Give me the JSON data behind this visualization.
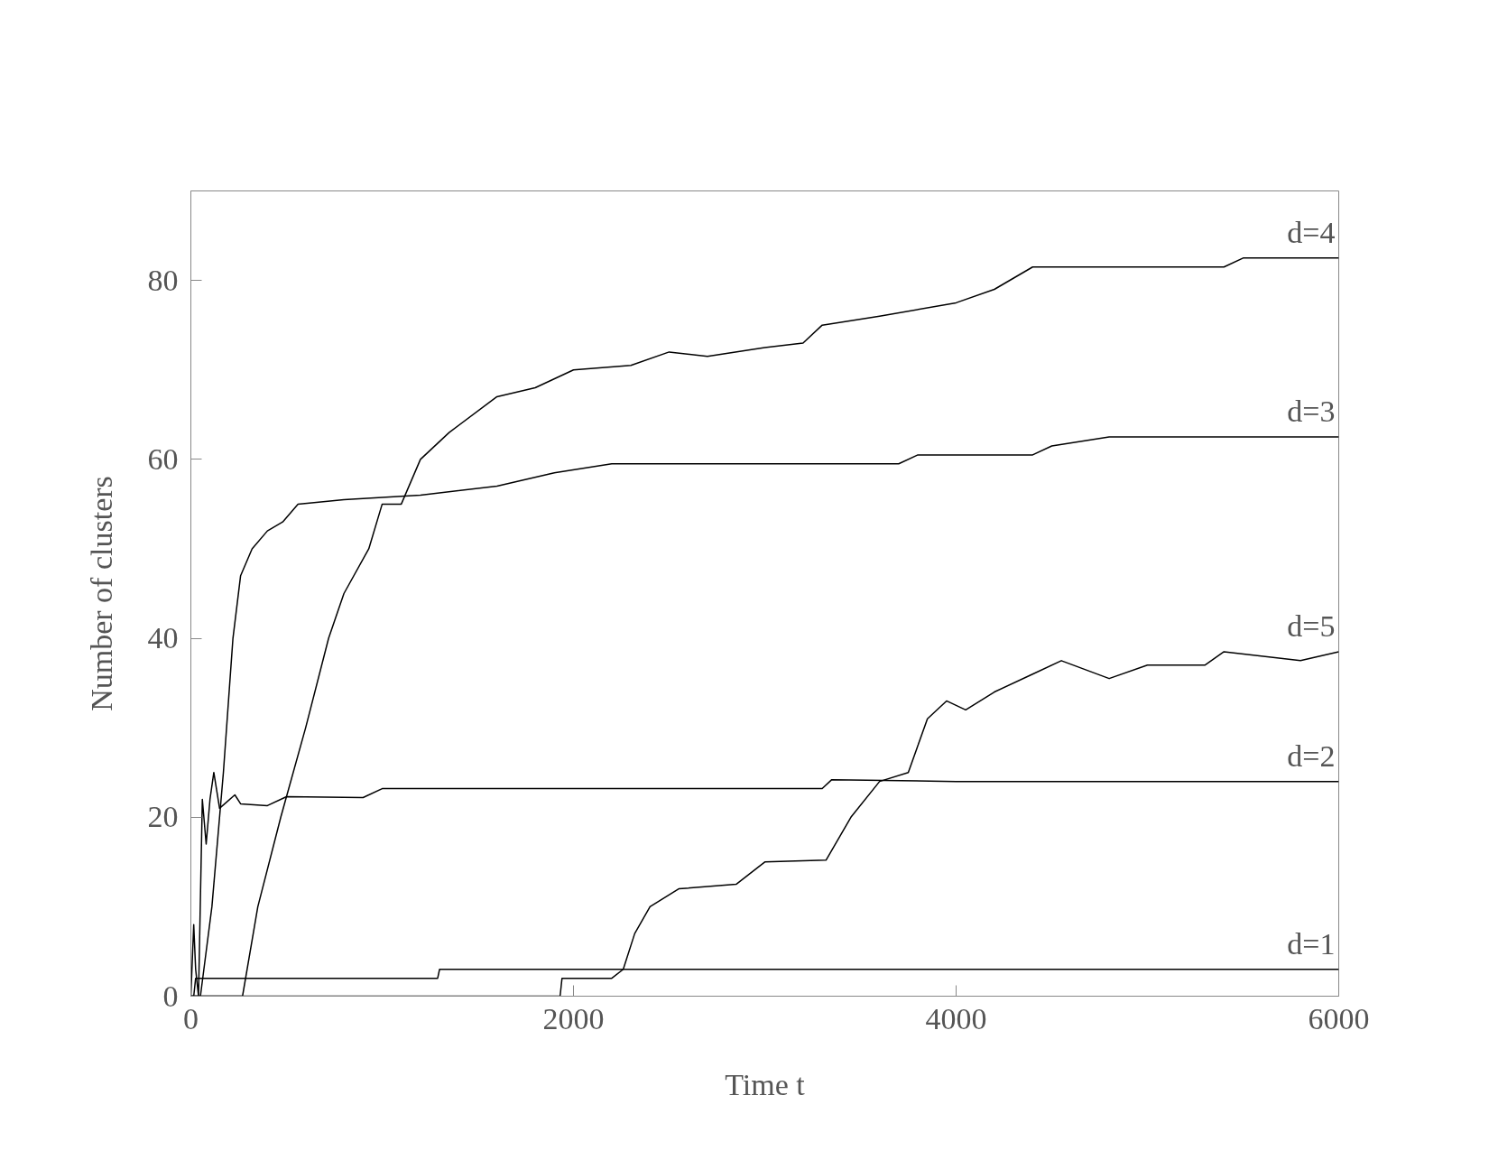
{
  "chart_data": {
    "type": "line",
    "xlabel": "Time t",
    "ylabel": "Number of clusters",
    "xlim": [
      0,
      6000
    ],
    "ylim": [
      0,
      90
    ],
    "xticks": [
      0,
      2000,
      4000,
      6000
    ],
    "yticks": [
      0,
      20,
      40,
      60,
      80
    ],
    "grid": false,
    "legend": false,
    "marker": "none",
    "line_style": "solid",
    "series": [
      {
        "name": "d=1",
        "color": "#000000",
        "x": [
          0,
          15,
          25,
          600,
          1290,
          1300,
          2000,
          3000,
          4000,
          5000,
          6000
        ],
        "values": [
          0,
          0,
          2,
          2,
          2,
          3,
          3,
          3,
          3,
          3,
          3
        ]
      },
      {
        "name": "d=2",
        "color": "#000000",
        "x": [
          0,
          15,
          25,
          40,
          60,
          80,
          100,
          120,
          150,
          230,
          260,
          400,
          500,
          900,
          1000,
          2000,
          3300,
          3350,
          4000,
          5000,
          6000
        ],
        "values": [
          0,
          8,
          3,
          0,
          22,
          17,
          22,
          25,
          21,
          22.5,
          21.5,
          21.3,
          22.3,
          22.2,
          23.2,
          23.2,
          23.2,
          24.2,
          24,
          24,
          24
        ]
      },
      {
        "name": "d=3",
        "color": "#000000",
        "x": [
          0,
          50,
          110,
          170,
          220,
          260,
          320,
          400,
          480,
          560,
          800,
          1200,
          1600,
          1900,
          2200,
          3700,
          3800,
          4400,
          4500,
          4800,
          6000
        ],
        "values": [
          0,
          0,
          10,
          25,
          40,
          47,
          50,
          52,
          53,
          55,
          55.5,
          56,
          57,
          58.5,
          59.5,
          59.5,
          60.5,
          60.5,
          61.5,
          62.5,
          62.5
        ]
      },
      {
        "name": "d=4",
        "color": "#000000",
        "x": [
          0,
          270,
          350,
          470,
          600,
          720,
          800,
          930,
          1000,
          1100,
          1200,
          1350,
          1600,
          1800,
          2000,
          2300,
          2500,
          2700,
          3000,
          3200,
          3300,
          3600,
          4000,
          4200,
          4400,
          5400,
          5500,
          6000
        ],
        "values": [
          0,
          0,
          10,
          20,
          30,
          40,
          45,
          50,
          55,
          55,
          60,
          63,
          67,
          68,
          70,
          70.5,
          72,
          71.5,
          72.5,
          73,
          75,
          76,
          77.5,
          79,
          81.5,
          81.5,
          82.5,
          82.5
        ]
      },
      {
        "name": "d=5",
        "color": "#000000",
        "x": [
          0,
          1930,
          1940,
          2200,
          2260,
          2320,
          2400,
          2550,
          2850,
          3000,
          3320,
          3450,
          3600,
          3750,
          3850,
          3950,
          4050,
          4200,
          4400,
          4550,
          4800,
          5000,
          5300,
          5400,
          5800,
          6000
        ],
        "values": [
          0,
          0,
          2,
          2,
          3,
          7,
          10,
          12,
          12.5,
          15,
          15.2,
          20,
          24,
          25,
          31,
          33,
          32,
          34,
          36,
          37.5,
          35.5,
          37,
          37,
          38.5,
          37.5,
          38.5
        ]
      }
    ]
  }
}
